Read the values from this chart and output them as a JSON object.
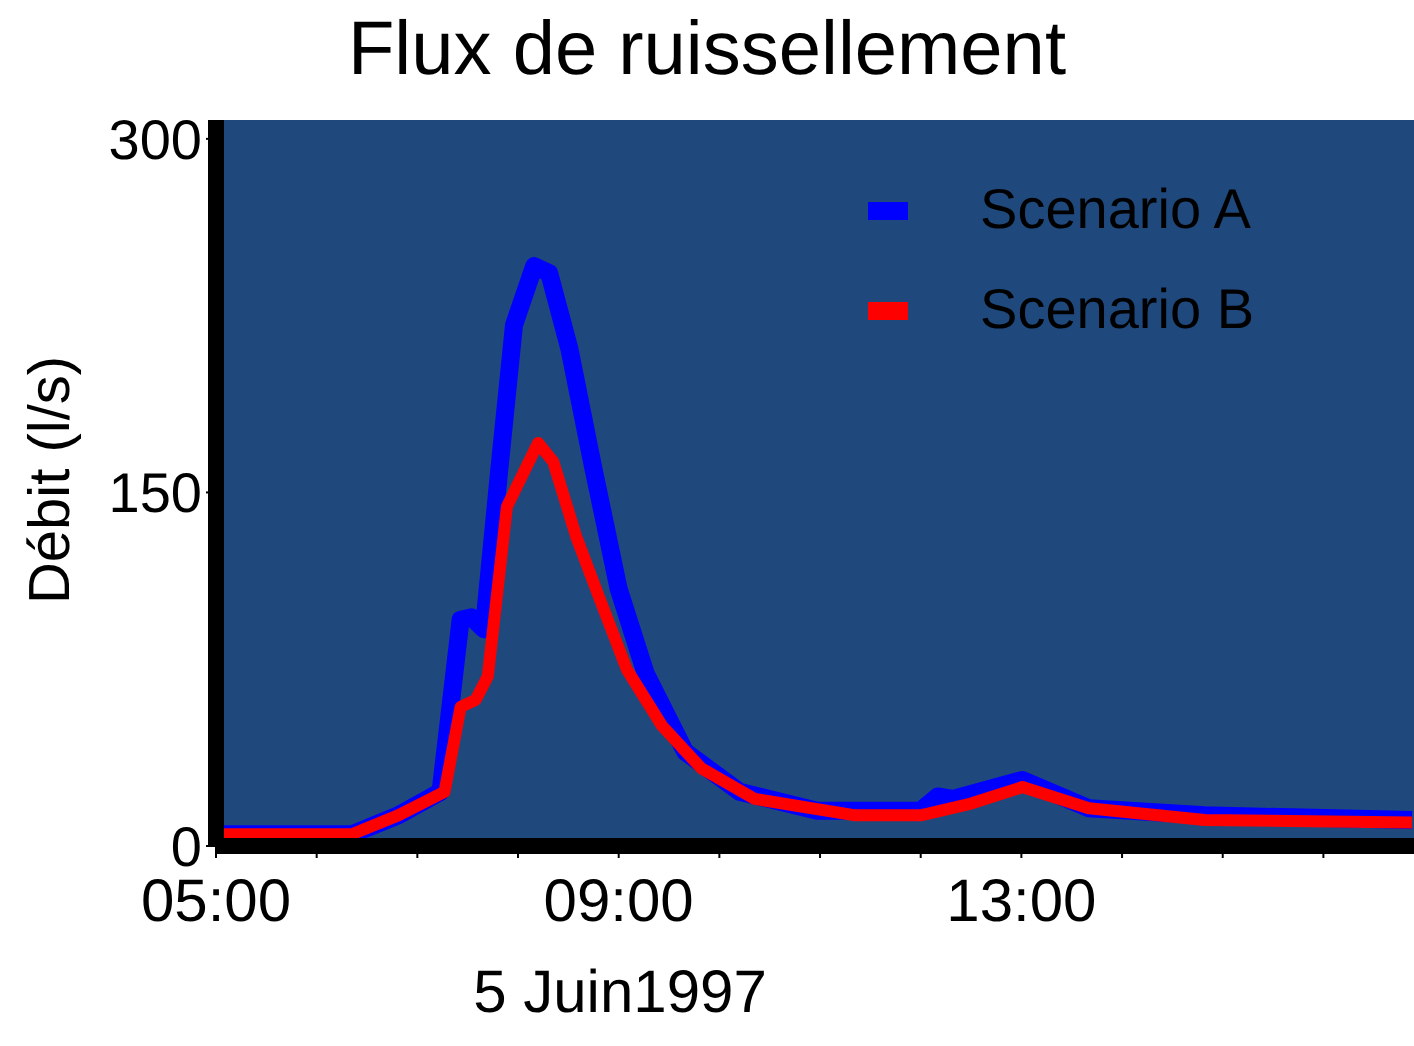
{
  "chart_data": {
    "type": "line",
    "title": "Flux de ruissellement",
    "xlabel": "5 Juin1997",
    "ylabel": "Débit (l/s)",
    "xlim": [
      5,
      16.9
    ],
    "ylim": [
      0,
      308
    ],
    "xticks": [
      {
        "value": 5,
        "label": "05:00"
      },
      {
        "value": 6,
        "label": null
      },
      {
        "value": 7,
        "label": null
      },
      {
        "value": 8,
        "label": null
      },
      {
        "value": 9,
        "label": "09:00"
      },
      {
        "value": 10,
        "label": null
      },
      {
        "value": 11,
        "label": null
      },
      {
        "value": 12,
        "label": null
      },
      {
        "value": 13,
        "label": "13:00"
      },
      {
        "value": 14,
        "label": null
      },
      {
        "value": 15,
        "label": null
      },
      {
        "value": 16,
        "label": null
      }
    ],
    "yticks": [
      0,
      150,
      300
    ],
    "legend": "top right",
    "marker": "none",
    "line_style": "solid",
    "series": [
      {
        "name": "Scenario A",
        "color": "#0000ff",
        "x": [
          5.04,
          6.35,
          6.81,
          7.23,
          7.43,
          7.54,
          7.66,
          7.81,
          7.96,
          8.16,
          8.31,
          8.51,
          8.74,
          9.0,
          9.27,
          9.66,
          10.2,
          10.97,
          12.0,
          12.17,
          12.32,
          13.01,
          13.67,
          14.82,
          16.88
        ],
        "values": [
          5,
          5,
          13,
          23,
          96,
          97,
          92,
          158,
          221,
          246,
          243,
          211,
          162,
          109,
          73,
          40,
          23,
          15,
          15,
          21,
          20,
          28,
          16,
          13,
          11
        ]
      },
      {
        "name": "Scenario B",
        "color": "#ff0000",
        "x": [
          5.04,
          6.35,
          6.81,
          7.27,
          7.43,
          7.58,
          7.7,
          7.89,
          8.2,
          8.35,
          8.58,
          8.81,
          9.08,
          9.43,
          9.82,
          10.35,
          11.35,
          12.0,
          12.5,
          13.01,
          13.67,
          14.82,
          16.88
        ],
        "values": [
          5,
          5,
          13,
          23,
          59,
          62,
          72,
          144,
          171,
          163,
          131,
          105,
          75,
          51,
          33,
          20,
          13,
          13,
          18,
          25,
          16,
          11,
          10
        ]
      }
    ]
  }
}
